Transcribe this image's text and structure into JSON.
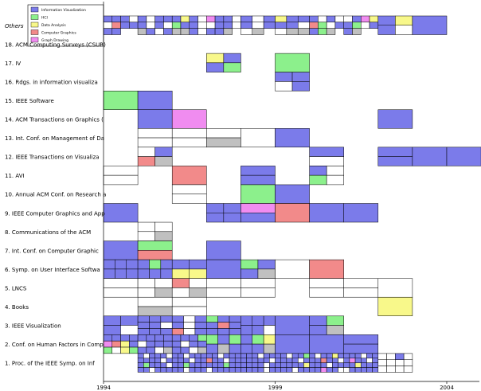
{
  "chart_data": {
    "type": "treemap-timeline",
    "x_ticks": [
      "1994",
      "1999",
      "2004"
    ],
    "rows": [
      "Others",
      "18. ACM Computing Surveys (CSUR)",
      "17. IV",
      "16. Rdgs. in information visualiza",
      "15. IEEE Software",
      "14. ACM Transactions on Graphics (",
      "13. Int. Conf. on Management of Da",
      "12. IEEE Transactions on Visualiza",
      "11. AVI",
      "10. Annual ACM Conf. on Research a",
      "9. IEEE Computer Graphics and App",
      "8. Communications of the ACM",
      "7. Int. Conf. on Computer Graphic",
      "6. Symp. on User Interface Softwa",
      "5. LNCS",
      "4. Books",
      "3. IEEE Visualization",
      "2. Conf. on Human Factors in Comp",
      "1. Proc. of the IEEE Symp. on Inf"
    ],
    "legend": [
      {
        "name": "Information Visualization",
        "color": "#7b7bea"
      },
      {
        "name": "HCI",
        "color": "#8cf08c"
      },
      {
        "name": "Data Analysis",
        "color": "#f8f88a"
      },
      {
        "name": "Computer Graphics",
        "color": "#f28a8a"
      },
      {
        "name": "Graph Drawing",
        "color": "#f08cf0"
      }
    ],
    "colors": {
      "I": "#7b7bea",
      "H": "#8cf08c",
      "D": "#f8f88a",
      "C": "#f28a8a",
      "G": "#f08cf0",
      "E": "#ffffff",
      "S": "#c0c0c0"
    },
    "cells": [
      {
        "row": 0,
        "col": 0,
        "fill": [
          "I",
          "I",
          "I",
          "E",
          "E",
          "C",
          "I",
          "I",
          "I",
          "I"
        ]
      },
      {
        "row": 0,
        "col": 1,
        "fill": [
          "I",
          "E",
          "I",
          "I",
          "I",
          "E",
          "I",
          "E",
          "S",
          "I",
          "E",
          "I"
        ]
      },
      {
        "row": 0,
        "col": 2,
        "fill": [
          "I",
          "D",
          "I",
          "E",
          "H",
          "I",
          "I",
          "E",
          "S",
          "S",
          "I",
          "E"
        ]
      },
      {
        "row": 0,
        "col": 3,
        "fill": [
          "G",
          "I",
          "I",
          "E",
          "E",
          "I",
          "I",
          "E",
          "I",
          "I",
          "S"
        ]
      },
      {
        "row": 0,
        "col": 4,
        "fill": [
          "I",
          "E",
          "I",
          "I",
          "E",
          "I",
          "E",
          "S"
        ]
      },
      {
        "row": 0,
        "col": 5,
        "fill": [
          "D",
          "I",
          "I",
          "I",
          "I",
          "E",
          "E",
          "S",
          "S"
        ]
      },
      {
        "row": 0,
        "col": 6,
        "fill": [
          "I",
          "E",
          "I",
          "E",
          "C",
          "H",
          "E",
          "I",
          "I",
          "H",
          "S"
        ]
      },
      {
        "row": 0,
        "col": 7,
        "fill": [
          "E",
          "I",
          "G",
          "D",
          "I",
          "H",
          "E",
          "I",
          "I",
          "S"
        ]
      },
      {
        "row": 0,
        "col": 8,
        "fill": [
          "I",
          "D",
          "I",
          "E"
        ]
      },
      {
        "row": 0,
        "col": 9,
        "fill": [
          "I"
        ]
      },
      {
        "row": 2,
        "col": 3,
        "fill": [
          "D",
          "I",
          "I",
          "H"
        ]
      },
      {
        "row": 2,
        "col": 5,
        "fill": [
          "H"
        ]
      },
      {
        "row": 3,
        "col": 5,
        "fill": [
          "I",
          "I",
          "E",
          "I"
        ]
      },
      {
        "row": 4,
        "col": 0,
        "fill": [
          "H"
        ]
      },
      {
        "row": 4,
        "col": 1,
        "fill": [
          "I"
        ]
      },
      {
        "row": 5,
        "col": 1,
        "fill": [
          "I"
        ]
      },
      {
        "row": 5,
        "col": 2,
        "fill": [
          "G"
        ]
      },
      {
        "row": 5,
        "col": 8,
        "fill": [
          "I"
        ]
      },
      {
        "row": 6,
        "col": 1,
        "fill": [
          "E",
          "E"
        ]
      },
      {
        "row": 6,
        "col": 2,
        "fill": [
          "E",
          "E"
        ]
      },
      {
        "row": 6,
        "col": 3,
        "fill": [
          "E",
          "S"
        ]
      },
      {
        "row": 6,
        "col": 4,
        "fill": [
          "E"
        ]
      },
      {
        "row": 6,
        "col": 5,
        "fill": [
          "I"
        ]
      },
      {
        "row": 7,
        "col": 1,
        "fill": [
          "E",
          "I",
          "C",
          "S"
        ]
      },
      {
        "row": 7,
        "col": 6,
        "fill": [
          "I",
          "E"
        ]
      },
      {
        "row": 7,
        "col": 8,
        "fill": [
          "I",
          "I"
        ]
      },
      {
        "row": 7,
        "col": 9,
        "fill": [
          "I"
        ]
      },
      {
        "row": 7,
        "col": 10,
        "fill": [
          "I"
        ]
      },
      {
        "row": 8,
        "col": 0,
        "fill": [
          "E",
          "E"
        ]
      },
      {
        "row": 8,
        "col": 2,
        "fill": [
          "C"
        ]
      },
      {
        "row": 8,
        "col": 4,
        "fill": [
          "I",
          "I"
        ]
      },
      {
        "row": 8,
        "col": 6,
        "fill": [
          "I",
          "E",
          "H",
          "E"
        ]
      },
      {
        "row": 9,
        "col": 2,
        "fill": [
          "E",
          "E"
        ]
      },
      {
        "row": 9,
        "col": 4,
        "fill": [
          "H"
        ]
      },
      {
        "row": 9,
        "col": 5,
        "fill": [
          "I"
        ]
      },
      {
        "row": 10,
        "col": 0,
        "fill": [
          "I"
        ]
      },
      {
        "row": 10,
        "col": 3,
        "fill": [
          "I",
          "I",
          "I",
          "I"
        ]
      },
      {
        "row": 10,
        "col": 4,
        "fill": [
          "G",
          "I"
        ]
      },
      {
        "row": 10,
        "col": 5,
        "fill": [
          "C"
        ]
      },
      {
        "row": 10,
        "col": 6,
        "fill": [
          "I"
        ]
      },
      {
        "row": 10,
        "col": 7,
        "fill": [
          "I"
        ]
      },
      {
        "row": 11,
        "col": 1,
        "fill": [
          "E",
          "E",
          "E",
          "S"
        ]
      },
      {
        "row": 12,
        "col": 0,
        "fill": [
          "I"
        ]
      },
      {
        "row": 12,
        "col": 1,
        "fill": [
          "H",
          "C"
        ]
      },
      {
        "row": 12,
        "col": 3,
        "fill": [
          "I"
        ]
      },
      {
        "row": 13,
        "col": 0,
        "fill": [
          "I",
          "I",
          "I",
          "I",
          "I",
          "I"
        ]
      },
      {
        "row": 13,
        "col": 1,
        "fill": [
          "I",
          "H",
          "I",
          "I",
          "I",
          "I"
        ]
      },
      {
        "row": 13,
        "col": 2,
        "fill": [
          "I",
          "I",
          "D",
          "D"
        ]
      },
      {
        "row": 13,
        "col": 3,
        "fill": [
          "I"
        ]
      },
      {
        "row": 13,
        "col": 4,
        "fill": [
          "H",
          "I",
          "I",
          "S"
        ]
      },
      {
        "row": 13,
        "col": 5,
        "fill": [
          "E"
        ]
      },
      {
        "row": 13,
        "col": 6,
        "fill": [
          "C"
        ]
      },
      {
        "row": 14,
        "col": 0,
        "fill": [
          "E",
          "E"
        ]
      },
      {
        "row": 14,
        "col": 1,
        "fill": [
          "E",
          "E",
          "E",
          "S"
        ]
      },
      {
        "row": 14,
        "col": 2,
        "fill": [
          "C",
          "E",
          "E",
          "S"
        ]
      },
      {
        "row": 14,
        "col": 3,
        "fill": [
          "E",
          "E"
        ]
      },
      {
        "row": 14,
        "col": 4,
        "fill": [
          "E",
          "E"
        ]
      },
      {
        "row": 14,
        "col": 6,
        "fill": [
          "E",
          "E"
        ]
      },
      {
        "row": 14,
        "col": 7,
        "fill": [
          "E",
          "E"
        ]
      },
      {
        "row": 14,
        "col": 8,
        "fill": [
          "E"
        ]
      },
      {
        "row": 15,
        "col": 1,
        "fill": [
          "E",
          "S"
        ]
      },
      {
        "row": 15,
        "col": 2,
        "fill": [
          "E",
          "E"
        ]
      },
      {
        "row": 15,
        "col": 8,
        "fill": [
          "D"
        ]
      },
      {
        "row": 16,
        "col": 0,
        "fill": [
          "I",
          "I",
          "I"
        ]
      },
      {
        "row": 16,
        "col": 1,
        "fill": [
          "I",
          "I",
          "I",
          "I",
          "I",
          "E",
          "I",
          "I",
          "I"
        ]
      },
      {
        "row": 16,
        "col": 2,
        "fill": [
          "I",
          "E",
          "I",
          "I",
          "E",
          "I",
          "C",
          "E",
          "I"
        ]
      },
      {
        "row": 16,
        "col": 3,
        "fill": [
          "H",
          "I",
          "I",
          "I",
          "C",
          "I",
          "I",
          "I",
          "I"
        ]
      },
      {
        "row": 16,
        "col": 4,
        "fill": [
          "I",
          "I",
          "I",
          "I",
          "I",
          "E"
        ]
      },
      {
        "row": 16,
        "col": 5,
        "fill": [
          "I"
        ]
      },
      {
        "row": 16,
        "col": 6,
        "fill": [
          "I",
          "H",
          "I",
          "S"
        ]
      },
      {
        "row": 17,
        "col": 0,
        "fill": [
          "I",
          "I",
          "I",
          "I",
          "G",
          "C",
          "D",
          "I",
          "H",
          "E",
          "D",
          "H"
        ]
      },
      {
        "row": 17,
        "col": 1,
        "fill": [
          "I",
          "I",
          "I",
          "I",
          "E",
          "I",
          "I",
          "I",
          "I",
          "I",
          "E",
          "S"
        ]
      },
      {
        "row": 17,
        "col": 2,
        "fill": [
          "I",
          "I",
          "I",
          "H",
          "I",
          "E",
          "I",
          "I",
          "I",
          "I",
          "E",
          "S"
        ]
      },
      {
        "row": 17,
        "col": 3,
        "fill": [
          "H",
          "I",
          "H",
          "I",
          "S",
          "I"
        ]
      },
      {
        "row": 17,
        "col": 4,
        "fill": [
          "I",
          "H",
          "D",
          "I",
          "I",
          "S"
        ]
      },
      {
        "row": 17,
        "col": 5,
        "fill": [
          "I"
        ]
      },
      {
        "row": 17,
        "col": 6,
        "fill": [
          "I"
        ]
      },
      {
        "row": 17,
        "col": 7,
        "fill": [
          "I",
          "I"
        ]
      },
      {
        "row": 18,
        "col": 1,
        "fill": [
          "I",
          "E",
          "I",
          "I",
          "I",
          "E",
          "I",
          "I",
          "I",
          "I",
          "E",
          "I",
          "I",
          "H",
          "I",
          "I",
          "I",
          "E",
          "I",
          "I",
          "E",
          "I",
          "I",
          "I"
        ]
      },
      {
        "row": 18,
        "col": 2,
        "fill": [
          "I",
          "I",
          "E",
          "I",
          "I",
          "I",
          "I",
          "I",
          "I",
          "E",
          "I",
          "I",
          "I",
          "I",
          "H",
          "I",
          "I",
          "I",
          "I",
          "I",
          "E",
          "I",
          "I",
          "I"
        ]
      },
      {
        "row": 18,
        "col": 3,
        "fill": [
          "I",
          "I",
          "E",
          "I",
          "I",
          "I",
          "C",
          "I",
          "I",
          "E",
          "I",
          "I",
          "I",
          "I",
          "I",
          "H",
          "I",
          "I",
          "E",
          "I",
          "I",
          "I",
          "I",
          "I"
        ]
      },
      {
        "row": 18,
        "col": 4,
        "fill": [
          "I",
          "I",
          "I",
          "E",
          "I",
          "I",
          "I",
          "I",
          "I",
          "I",
          "I",
          "E",
          "I",
          "I",
          "I",
          "I",
          "E",
          "I",
          "I",
          "I",
          "I",
          "I",
          "E",
          "I"
        ]
      },
      {
        "row": 18,
        "col": 5,
        "fill": [
          "I",
          "I",
          "E",
          "I",
          "I",
          "H",
          "I",
          "I",
          "I",
          "I",
          "E",
          "I",
          "I",
          "I",
          "I",
          "I",
          "I",
          "D",
          "I",
          "I",
          "I",
          "E",
          "I",
          "I"
        ]
      },
      {
        "row": 18,
        "col": 6,
        "fill": [
          "I",
          "E",
          "I",
          "I",
          "D",
          "I",
          "I",
          "I",
          "C",
          "I",
          "I",
          "E",
          "I",
          "I",
          "I",
          "E",
          "I",
          "I",
          "I",
          "I",
          "G",
          "I",
          "I",
          "E"
        ]
      },
      {
        "row": 18,
        "col": 7,
        "fill": [
          "I",
          "I",
          "I",
          "E",
          "I",
          "I",
          "I",
          "G",
          "I",
          "I",
          "E",
          "I",
          "I",
          "I",
          "D",
          "I",
          "I",
          "I",
          "E",
          "I",
          "I",
          "I",
          "I",
          "I"
        ]
      },
      {
        "row": 18,
        "col": 8,
        "fill": [
          "E",
          "E",
          "I",
          "E",
          "E",
          "E",
          "E",
          "E",
          "E",
          "E",
          "E",
          "E"
        ]
      }
    ]
  }
}
